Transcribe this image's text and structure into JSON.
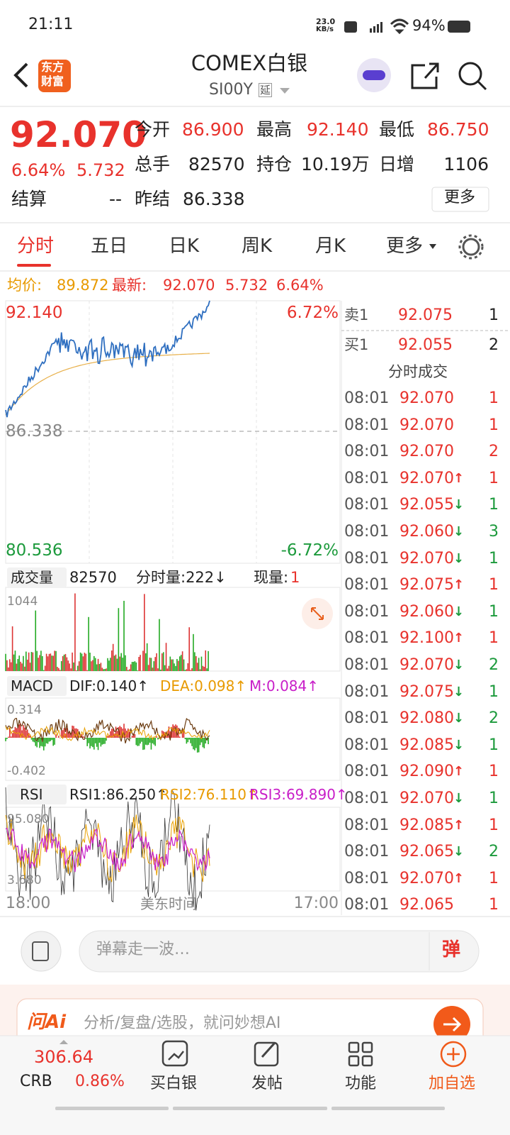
{
  "status": {
    "time": "21:11",
    "speed_value": "23.0",
    "speed_unit": "KB/s",
    "battery": "94%"
  },
  "header": {
    "logo_top": "东方",
    "logo_bottom": "财富",
    "title": "COMEX白银",
    "code": "SI00Y",
    "tag": "延"
  },
  "quote": {
    "price": "92.070",
    "percent": "6.64%",
    "change": "5.732",
    "open_label": "今开",
    "open": "86.900",
    "high_label": "最高",
    "high": "92.140",
    "low_label": "最低",
    "low": "86.750",
    "volume_label": "总手",
    "volume": "82570",
    "position_label": "持仓",
    "position": "10.19万",
    "daily_add_label": "日增",
    "daily_add": "1106",
    "settle_label": "结算",
    "settle": "--",
    "prev_settle_label": "昨结",
    "prev_settle": "86.338",
    "more": "更多"
  },
  "tabs": [
    "分时",
    "五日",
    "日K",
    "周K",
    "月K",
    "更多"
  ],
  "info": {
    "avg_label": "均价:",
    "avg": "89.872",
    "latest_label": "最新:",
    "latest": "92.070",
    "change": "5.732",
    "percent": "6.64%"
  },
  "price_chart": {
    "top": "92.140",
    "top_pct": "6.72%",
    "mid": "86.338",
    "bottom": "80.536",
    "bottom_pct": "-6.72%"
  },
  "volume_panel": {
    "label": "成交量",
    "total": "82570",
    "tick_volume": "分时量:222↓",
    "current_label": "现量:",
    "current": "1",
    "max": "1044"
  },
  "macd_panel": {
    "label": "MACD",
    "dif": "DIF:0.140↑",
    "dea": "DEA:0.098↑",
    "m": "M:0.084↑",
    "max": "0.314",
    "min": "-0.402"
  },
  "rsi_panel": {
    "label": "RSI",
    "rsi1": "RSI1:86.250↑",
    "rsi2": "RSI2:76.110↑",
    "rsi3": "RSI3:69.890↑",
    "max": "95.080",
    "min": "3.680"
  },
  "x_axis": {
    "start": "18:00",
    "label": "美东时间",
    "end": "17:00"
  },
  "order_book": {
    "ask_label": "卖1",
    "ask_price": "92.075",
    "ask_volume": "1",
    "bid_label": "买1",
    "bid_price": "92.055",
    "bid_volume": "2",
    "trades_title": "分时成交",
    "trades": [
      {
        "time": "08:01",
        "price": "92.070",
        "volume": "1"
      },
      {
        "time": "08:01",
        "price": "92.070",
        "volume": "1"
      },
      {
        "time": "08:01",
        "price": "92.070",
        "volume": "2"
      },
      {
        "time": "08:01",
        "price": "92.070",
        "arrow": "↑",
        "volume": "1"
      },
      {
        "time": "08:01",
        "price": "92.055",
        "arrow": "↓",
        "volume": "1"
      },
      {
        "time": "08:01",
        "price": "92.060",
        "arrow": "↓",
        "volume": "3"
      },
      {
        "time": "08:01",
        "price": "92.070",
        "arrow": "↓",
        "volume": "1"
      },
      {
        "time": "08:01",
        "price": "92.075",
        "arrow": "↑",
        "volume": "1"
      },
      {
        "time": "08:01",
        "price": "92.060",
        "arrow": "↓",
        "volume": "1"
      },
      {
        "time": "08:01",
        "price": "92.100",
        "arrow": "↑",
        "volume": "1"
      },
      {
        "time": "08:01",
        "price": "92.070",
        "arrow": "↓",
        "volume": "2"
      },
      {
        "time": "08:01",
        "price": "92.075",
        "arrow": "↓",
        "volume": "1"
      },
      {
        "time": "08:01",
        "price": "92.080",
        "arrow": "↓",
        "volume": "2"
      },
      {
        "time": "08:01",
        "price": "92.085",
        "arrow": "↓",
        "volume": "1"
      },
      {
        "time": "08:01",
        "price": "92.090",
        "arrow": "↑",
        "volume": "1"
      },
      {
        "time": "08:01",
        "price": "92.070",
        "arrow": "↓",
        "volume": "1"
      },
      {
        "time": "08:01",
        "price": "92.085",
        "arrow": "↑",
        "volume": "1"
      },
      {
        "time": "08:01",
        "price": "92.065",
        "arrow": "↓",
        "volume": "2"
      },
      {
        "time": "08:01",
        "price": "92.070",
        "arrow": "↑",
        "volume": "1"
      },
      {
        "time": "08:01",
        "price": "92.065",
        "volume": "1"
      }
    ]
  },
  "comment_bar": {
    "placeholder": "弹幕走一波…",
    "button": "弹"
  },
  "ai_bar": {
    "brand": "问Ai",
    "prompt": "分析/复盘/选股，就问妙想AI"
  },
  "bottom_nav": {
    "index_value": "306.64",
    "index_name": "CRB",
    "index_pct": "0.86%",
    "items": [
      "买白银",
      "发帖",
      "功能",
      "加自选"
    ]
  }
}
